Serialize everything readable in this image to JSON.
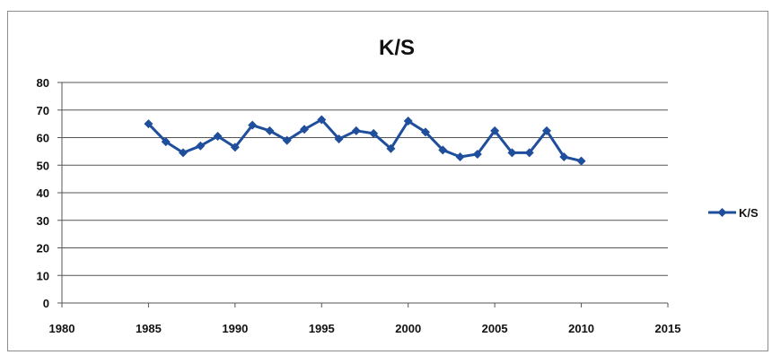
{
  "chart_data": {
    "type": "line",
    "title": "K/S",
    "xlabel": "",
    "ylabel": "",
    "xlim": [
      1980,
      2015
    ],
    "ylim": [
      0,
      80
    ],
    "x_ticks": [
      "1980",
      "1985",
      "1990",
      "1995",
      "2000",
      "2005",
      "2010",
      "2015"
    ],
    "y_ticks": [
      "0",
      "10",
      "20",
      "30",
      "40",
      "50",
      "60",
      "70",
      "80"
    ],
    "grid": "horizontal",
    "legend_position": "right",
    "series": [
      {
        "name": "K/S",
        "color": "#1f4e9c",
        "x": [
          1985,
          1986,
          1987,
          1988,
          1989,
          1990,
          1991,
          1992,
          1993,
          1994,
          1995,
          1996,
          1997,
          1998,
          1999,
          2000,
          2001,
          2002,
          2003,
          2004,
          2005,
          2006,
          2007,
          2008,
          2009,
          2010
        ],
        "values": [
          65,
          58.5,
          54.5,
          57,
          60.5,
          56.5,
          64.5,
          62.5,
          59,
          63,
          66.5,
          59.5,
          62.5,
          61.5,
          56,
          66,
          62,
          55.5,
          53,
          54,
          62.5,
          54.5,
          54.5,
          62.5,
          53,
          51.5
        ]
      }
    ]
  }
}
